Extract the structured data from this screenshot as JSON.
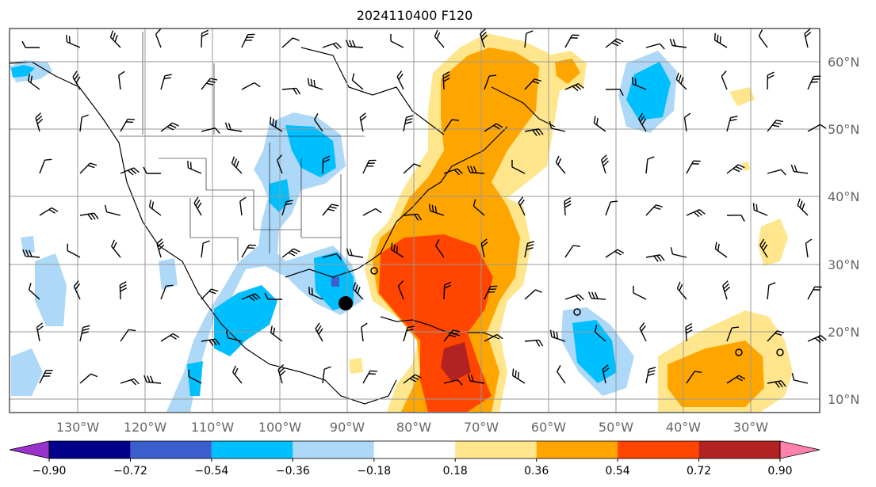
{
  "title": "2024110400 F120",
  "lon_ticks": [
    "130°W",
    "120°W",
    "110°W",
    "100°W",
    "90°W",
    "80°W",
    "70°W",
    "60°W",
    "50°W",
    "40°W",
    "30°W"
  ],
  "lat_ticks": [
    "60°N",
    "50°N",
    "40°N",
    "30°N",
    "20°N",
    "10°N"
  ],
  "colorbar": {
    "labels": [
      "−0.90",
      "−0.72",
      "−0.54",
      "−0.36",
      "−0.18",
      "0.18",
      "0.36",
      "0.54",
      "0.72",
      "0.90"
    ],
    "colors": [
      "#9933cc",
      "#00008b",
      "#3a5fcd",
      "#00bfff",
      "#add8f7",
      "#ffffff",
      "#ffe68c",
      "#ffa500",
      "#ff4500",
      "#b22222",
      "#ff82ab"
    ]
  },
  "map_colors": {
    "neg_light": "#add8f7",
    "neg_mid": "#00bfff",
    "neg_dark": "#3a5fcd",
    "pos_light": "#ffe68c",
    "pos_mid": "#ffa500",
    "pos_high": "#ff4500",
    "pos_max": "#b22222"
  }
}
